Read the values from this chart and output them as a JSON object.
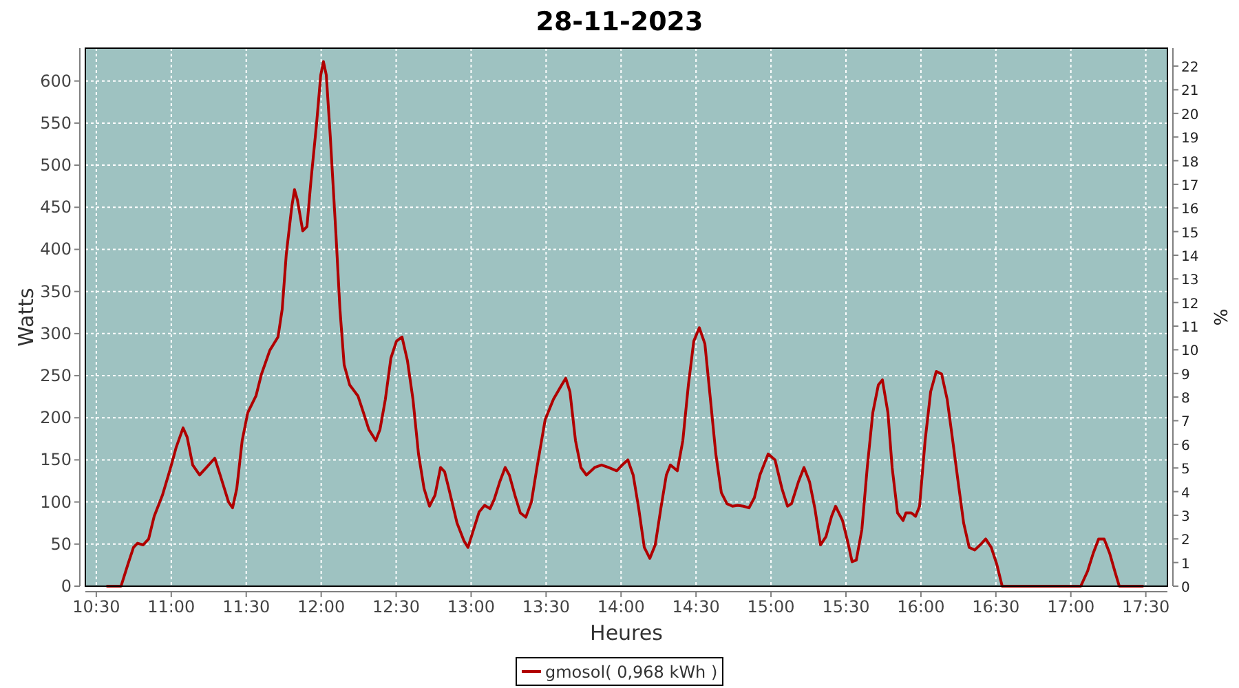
{
  "chart_data": {
    "type": "line",
    "title": "28-11-2023",
    "xlabel": "Heures",
    "ylabel": "Watts",
    "y2label": "%",
    "xlim": [
      10.427,
      17.644
    ],
    "xticks": [
      {
        "value": 10.5,
        "label": "10:30"
      },
      {
        "value": 11,
        "label": "11:00"
      },
      {
        "value": 11.5,
        "label": "11:30"
      },
      {
        "value": 12,
        "label": "12:00"
      },
      {
        "value": 12.5,
        "label": "12:30"
      },
      {
        "value": 13,
        "label": "13:00"
      },
      {
        "value": 13.5,
        "label": "13:30"
      },
      {
        "value": 14,
        "label": "14:00"
      },
      {
        "value": 14.5,
        "label": "14:30"
      },
      {
        "value": 15,
        "label": "15:00"
      },
      {
        "value": 15.5,
        "label": "15:30"
      },
      {
        "value": 16,
        "label": "16:00"
      },
      {
        "value": 16.5,
        "label": "16:30"
      },
      {
        "value": 17,
        "label": "17:00"
      },
      {
        "value": 17.5,
        "label": "17:30"
      }
    ],
    "ylim": [
      0,
      639
    ],
    "yticks": [
      0,
      50,
      100,
      150,
      200,
      250,
      300,
      350,
      400,
      450,
      500,
      550,
      600
    ],
    "y2lim": [
      0,
      22.76
    ],
    "y2ticks": [
      0,
      1,
      2,
      3,
      4,
      5,
      6,
      7,
      8,
      9,
      10,
      11,
      12,
      13,
      14,
      15,
      16,
      17,
      18,
      19,
      20,
      21,
      22
    ],
    "grid": true,
    "legend": "bottom",
    "line_style": "solid",
    "series": [
      {
        "name": "gmosol( 0,968 kWh )",
        "color": "#b00000",
        "x": [
          10.573,
          10.665,
          10.711,
          10.748,
          10.775,
          10.812,
          10.849,
          10.886,
          10.941,
          10.996,
          11.033,
          11.079,
          11.106,
          11.143,
          11.189,
          11.235,
          11.29,
          11.326,
          11.382,
          11.409,
          11.437,
          11.473,
          11.51,
          11.565,
          11.602,
          11.657,
          11.712,
          11.74,
          11.767,
          11.804,
          11.822,
          11.841,
          11.877,
          11.905,
          11.933,
          11.969,
          11.997,
          12.015,
          12.034,
          12.061,
          12.098,
          12.125,
          12.153,
          12.19,
          12.245,
          12.282,
          12.318,
          12.364,
          12.392,
          12.428,
          12.465,
          12.502,
          12.539,
          12.575,
          12.612,
          12.649,
          12.686,
          12.722,
          12.759,
          12.796,
          12.823,
          12.851,
          12.906,
          12.952,
          12.979,
          13.016,
          13.053,
          13.09,
          13.126,
          13.154,
          13.191,
          13.227,
          13.255,
          13.292,
          13.328,
          13.365,
          13.402,
          13.439,
          13.494,
          13.549,
          13.604,
          13.631,
          13.659,
          13.696,
          13.732,
          13.769,
          13.824,
          13.87,
          13.916,
          13.971,
          14.008,
          14.045,
          14.081,
          14.118,
          14.155,
          14.192,
          14.228,
          14.265,
          14.302,
          14.329,
          14.375,
          14.412,
          14.449,
          14.485,
          14.522,
          14.559,
          14.596,
          14.632,
          14.669,
          14.706,
          14.743,
          14.779,
          14.816,
          14.853,
          14.889,
          14.926,
          14.981,
          15.027,
          15.073,
          15.11,
          15.137,
          15.183,
          15.22,
          15.257,
          15.293,
          15.33,
          15.367,
          15.404,
          15.431,
          15.477,
          15.514,
          15.541,
          15.569,
          15.606,
          15.642,
          15.679,
          15.716,
          15.743,
          15.78,
          15.808,
          15.844,
          15.881,
          15.9,
          15.936,
          15.964,
          15.991,
          16.028,
          16.065,
          16.102,
          16.138,
          16.175,
          16.212,
          16.248,
          16.285,
          16.322,
          16.359,
          16.395,
          16.432,
          16.469,
          16.506,
          16.542,
          16.653,
          16.836,
          16.947,
          17.066,
          17.112,
          17.149,
          17.185,
          17.222,
          17.259,
          17.296,
          17.323,
          17.406,
          17.479
        ],
        "values": [
          0,
          0,
          26,
          46,
          51,
          49,
          56,
          83,
          108,
          141,
          165,
          188,
          177,
          144,
          132,
          141,
          152,
          132,
          100,
          93,
          116,
          173,
          206,
          226,
          252,
          280,
          296,
          329,
          394,
          451,
          471,
          459,
          422,
          427,
          484,
          549,
          607,
          623,
          607,
          533,
          419,
          329,
          263,
          239,
          226,
          206,
          186,
          173,
          186,
          222,
          271,
          291,
          296,
          268,
          222,
          157,
          116,
          95,
          108,
          141,
          136,
          116,
          75,
          54,
          46,
          67,
          88,
          96,
          92,
          103,
          124,
          141,
          132,
          108,
          87,
          82,
          100,
          141,
          198,
          222,
          239,
          247,
          231,
          173,
          141,
          132,
          141,
          144,
          141,
          137,
          144,
          150,
          132,
          92,
          46,
          33,
          49,
          92,
          132,
          144,
          137,
          173,
          239,
          291,
          307,
          288,
          222,
          157,
          111,
          98,
          95,
          96,
          95,
          93,
          105,
          132,
          157,
          150,
          116,
          95,
          98,
          124,
          141,
          124,
          92,
          49,
          59,
          83,
          95,
          78,
          51,
          29,
          31,
          67,
          141,
          206,
          239,
          245,
          206,
          141,
          87,
          78,
          87,
          87,
          83,
          95,
          173,
          231,
          255,
          252,
          222,
          173,
          124,
          75,
          46,
          43,
          49,
          56,
          46,
          26,
          0,
          0,
          0,
          0,
          0,
          18,
          39,
          56,
          56,
          39,
          16,
          0,
          0,
          0
        ]
      }
    ]
  }
}
